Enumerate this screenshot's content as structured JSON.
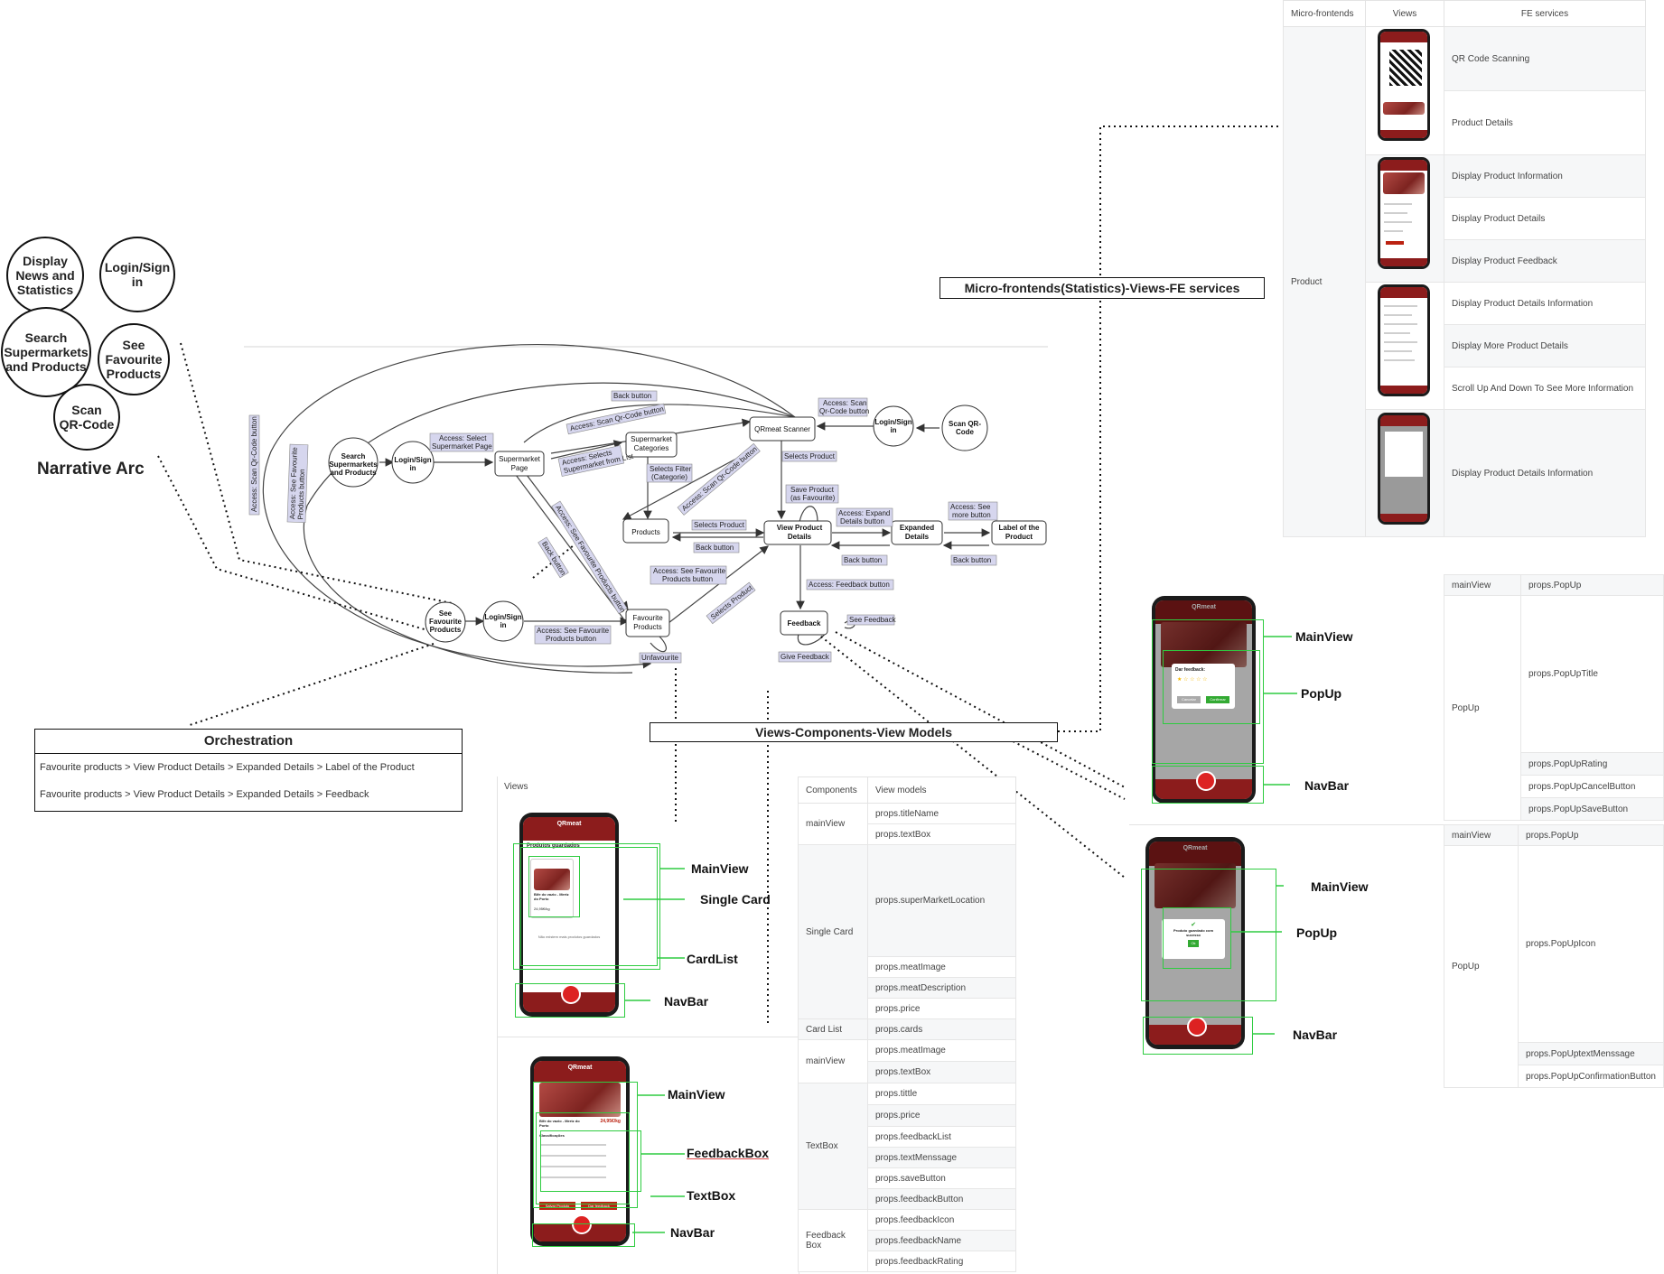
{
  "narrative": {
    "circles": [
      "Display News and Statistics",
      "Login/Sign in",
      "Search Supermarkets and Products",
      "See Favourite Products",
      "Scan QR-Code"
    ],
    "title": "Narrative Arc"
  },
  "flow": {
    "nodes": {
      "search": "Search Supermarkets and Products",
      "login_top": "Login/Sign in",
      "supermarket_page": "Supermarket Page",
      "supermarket_categories": "Supermarket Categories",
      "qrmeat_scanner": "QRmeat Scanner",
      "login_right": "Login/Sign in",
      "scan_qr": "Scan QR-Code",
      "products": "Products",
      "view_product_details": "View Product Details",
      "expanded_details": "Expanded Details",
      "label_product": "Label of the Product",
      "see_fav": "See Favourite Products",
      "login_bottom": "Login/Sign in",
      "favourite_products": "Favourite Products",
      "feedback": "Feedback"
    },
    "labels": {
      "back_top": "Back button",
      "access_scan_qr": "Access: Scan Qr-Code button",
      "access_select_supermarket": "Access: Select Supermarket Page",
      "access_scan_qr2": "Access: Scan Qr-Code button",
      "access_selects_supermarket": "Access: Selects Supermarket from List",
      "selects_filter": "Selects Filter (Categorie)",
      "selects_product": "Selects Product",
      "selects_product2": "Selects Product",
      "access_scan_qr3": "Access: Scan Qr-Code button",
      "access_see_fav_v": "Access: See Favourite Products button",
      "access_see_fav_diag": "Access: See Favourite Products button",
      "back_button_diag": "Back button",
      "save_product": "Save Product (as Favourite)",
      "access_expand": "Access: Expand Details button",
      "access_see_more": "Access: See more button",
      "back_button_mid": "Back button",
      "back_button_exp": "Back button",
      "back_button_label": "Back button",
      "access_see_fav_button": "Access: See Favourite Products button",
      "access_see_fav_bottom": "Access: See Favourite Products button",
      "selects_product3": "Selects Product",
      "access_feedback": "Access: Feedback button",
      "see_feedback": "See Feedback",
      "give_feedback": "Give Feedback",
      "unfavourite": "Unfavourite",
      "access_scan_qr_right": "Access: Scan Qr-Code button"
    }
  },
  "orchestration": {
    "title": "Orchestration",
    "rows": [
      "Favourite products > View Product Details > Expanded Details > Label of the Product",
      "Favourite products > View Product Details > Expanded Details > Feedback"
    ]
  },
  "vcvm": {
    "title": "Views-Components-View Models",
    "headers": [
      "Views",
      "Components",
      "View models"
    ],
    "rows": [
      {
        "component": "mainView",
        "models": [
          "props.titleName",
          "props.textBox"
        ]
      },
      {
        "component": "Single Card",
        "models": [
          "props.superMarketLocation",
          "props.meatImage",
          "props.meatDescription",
          "props.price"
        ]
      },
      {
        "component": "Card List",
        "models": [
          "props.cards"
        ]
      },
      {
        "component": "mainView",
        "models": [
          "props.meatImage",
          "props.textBox"
        ]
      },
      {
        "component": "TextBox",
        "models": [
          "props.tittle",
          "props.price",
          "props.feedbackList",
          "props.textMenssage",
          "props.saveButton",
          "props.feedbackButton"
        ]
      },
      {
        "component": "Feedback Box",
        "models": [
          "props.feedbackIcon",
          "props.feedbackName",
          "props.feedbackRating"
        ]
      }
    ],
    "phone1": {
      "app": "QRmeat",
      "header": "Produtos guardados",
      "card_title": "Bife do vazio - Mertz do Porto",
      "card_price": "24,95€/kg",
      "empty_msg": "Não existem mais produtos guardados"
    },
    "phone1_labels": [
      "MainView",
      "Single Card",
      "CardList",
      "NavBar"
    ],
    "phone2": {
      "app": "QRmeat",
      "title": "Bife do vazio - Mertz do Porto",
      "price": "24,95€/kg",
      "section": "Classificações",
      "btn1": "Salvar Produto",
      "btn2": "Dar feedback"
    },
    "phone2_labels": [
      "MainView",
      "FeedbackBox",
      "TextBox",
      "NavBar"
    ]
  },
  "mfe": {
    "title": "Micro-frontends(Statistics)-Views-FE services",
    "headers": [
      "Micro-frontends",
      "Views",
      "FE services"
    ],
    "group": "Product",
    "services": [
      "QR Code Scanning",
      "Product Details",
      "Display Product Information",
      "Display Product Details",
      "Display Product Feedback",
      "Display Product Details Information",
      "Display More Product Details",
      "Scroll Up And Down To See More Information",
      "Display Product Details Information"
    ]
  },
  "popups": {
    "labels1": [
      "MainView",
      "PopUp",
      "NavBar"
    ],
    "labels2": [
      "MainView",
      "PopUp",
      "NavBar"
    ],
    "phone1": {
      "app": "QRmeat",
      "popup_title": "Dar feedback:",
      "cancel": "Cancelar",
      "confirm": "Confirmar"
    },
    "phone2": {
      "app": "QRmeat",
      "popup_msg": "Produto guardado com sucesso",
      "ok": "Ok"
    },
    "table1": {
      "main": "mainView",
      "main_model": "props.PopUp",
      "comp": "PopUp",
      "models": [
        "props.PopUpTitle",
        "props.PopUpRating",
        "props.PopUpCancelButton",
        "props.PopUpSaveButton"
      ]
    },
    "table2": {
      "main": "mainView",
      "main_model": "props.PopUp",
      "comp": "PopUp",
      "models": [
        "props.PopUpIcon",
        "props.PopUptextMenssage",
        "props.PopUpConfirmationButton"
      ]
    }
  }
}
